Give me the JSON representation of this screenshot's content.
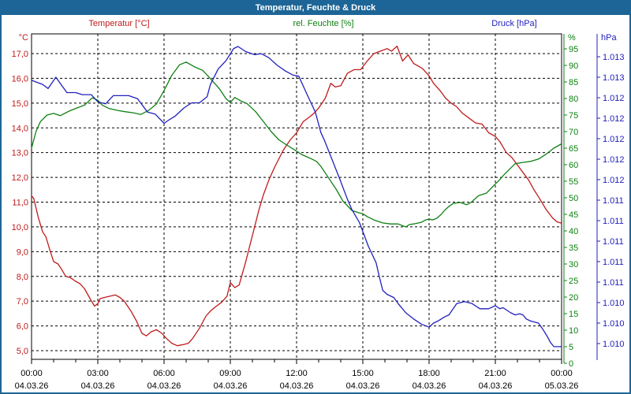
{
  "window": {
    "title": "Temperatur, Feuchte & Druck"
  },
  "legend": {
    "temperature": "Temperatur [°C]",
    "humidity": "rel. Feuchte [%]",
    "pressure": "Druck [hPa]"
  },
  "chart_data": {
    "type": "line",
    "title": "Temperatur, Feuchte & Druck",
    "grid": true,
    "legend_position": "top",
    "x_axis": {
      "label_times": [
        "00:00",
        "03:00",
        "06:00",
        "09:00",
        "12:00",
        "15:00",
        "18:00",
        "21:00",
        "00:00"
      ],
      "label_dates": [
        "04.03.26",
        "04.03.26",
        "04.03.26",
        "04.03.26",
        "04.03.26",
        "04.03.26",
        "04.03.26",
        "04.03.26",
        "05.03.26"
      ],
      "hours_range": [
        0,
        24
      ],
      "minor_tick_hours": 1,
      "major_tick_hours": 3
    },
    "y_axes": {
      "temperature": {
        "unit": "°C",
        "color": "#c01a1a",
        "tick_labels": [
          "17,0",
          "16,0",
          "15,0",
          "14,0",
          "13,0",
          "12,0",
          "11,0",
          "10,0",
          "9,0",
          "8,0",
          "7,0",
          "6,0",
          "5,0"
        ]
      },
      "humidity": {
        "unit": "%",
        "color": "#0f8012",
        "tick_labels": [
          "95",
          "90",
          "85",
          "80",
          "75",
          "70",
          "65",
          "60",
          "55",
          "50",
          "45",
          "40",
          "35",
          "30",
          "25",
          "20",
          "15",
          "10",
          "5",
          "0"
        ]
      },
      "pressure": {
        "unit": "hPa",
        "color": "#2121bd",
        "tick_labels": [
          "1.013",
          "1.013",
          "1.012",
          "1.012",
          "1.012",
          "1.012",
          "1.012",
          "1.011",
          "1.011",
          "1.011",
          "1.011",
          "1.011",
          "1.010",
          "1.010",
          "1.010"
        ]
      }
    },
    "series": [
      {
        "name": "Temperatur",
        "unit": "°C",
        "color": "#c01a1a",
        "points": [
          [
            0,
            11.25
          ],
          [
            0.1,
            11.15
          ],
          [
            0.3,
            10.4
          ],
          [
            0.5,
            9.8
          ],
          [
            0.65,
            9.6
          ],
          [
            0.85,
            9.0
          ],
          [
            1.0,
            8.6
          ],
          [
            1.2,
            8.5
          ],
          [
            1.35,
            8.3
          ],
          [
            1.55,
            8.0
          ],
          [
            1.75,
            7.95
          ],
          [
            2.0,
            7.8
          ],
          [
            2.2,
            7.7
          ],
          [
            2.4,
            7.5
          ],
          [
            2.65,
            7.1
          ],
          [
            2.85,
            6.8
          ],
          [
            3.0,
            6.9
          ],
          [
            3.1,
            7.1
          ],
          [
            3.3,
            7.15
          ],
          [
            3.55,
            7.2
          ],
          [
            3.8,
            7.25
          ],
          [
            4.0,
            7.15
          ],
          [
            4.2,
            7.0
          ],
          [
            4.5,
            6.6
          ],
          [
            4.75,
            6.2
          ],
          [
            5.0,
            5.7
          ],
          [
            5.2,
            5.6
          ],
          [
            5.4,
            5.75
          ],
          [
            5.65,
            5.85
          ],
          [
            5.9,
            5.7
          ],
          [
            6.1,
            5.5
          ],
          [
            6.35,
            5.3
          ],
          [
            6.6,
            5.2
          ],
          [
            6.9,
            5.25
          ],
          [
            7.1,
            5.3
          ],
          [
            7.3,
            5.5
          ],
          [
            7.6,
            5.9
          ],
          [
            7.9,
            6.4
          ],
          [
            8.1,
            6.6
          ],
          [
            8.3,
            6.75
          ],
          [
            8.6,
            6.95
          ],
          [
            8.85,
            7.2
          ],
          [
            9.0,
            7.75
          ],
          [
            9.2,
            7.55
          ],
          [
            9.4,
            7.65
          ],
          [
            9.7,
            8.6
          ],
          [
            9.9,
            9.3
          ],
          [
            10.1,
            10.0
          ],
          [
            10.3,
            10.7
          ],
          [
            10.5,
            11.3
          ],
          [
            10.75,
            11.9
          ],
          [
            11.0,
            12.4
          ],
          [
            11.2,
            12.75
          ],
          [
            11.4,
            13.1
          ],
          [
            11.7,
            13.5
          ],
          [
            12.0,
            13.8
          ],
          [
            12.3,
            14.25
          ],
          [
            12.6,
            14.45
          ],
          [
            12.8,
            14.6
          ],
          [
            13.0,
            14.8
          ],
          [
            13.3,
            15.2
          ],
          [
            13.55,
            15.8
          ],
          [
            13.75,
            15.65
          ],
          [
            14.0,
            15.7
          ],
          [
            14.3,
            16.2
          ],
          [
            14.6,
            16.35
          ],
          [
            14.9,
            16.35
          ],
          [
            15.2,
            16.7
          ],
          [
            15.5,
            17.0
          ],
          [
            15.8,
            17.1
          ],
          [
            16.1,
            17.2
          ],
          [
            16.3,
            17.1
          ],
          [
            16.55,
            17.3
          ],
          [
            16.8,
            16.7
          ],
          [
            17.05,
            16.95
          ],
          [
            17.3,
            16.6
          ],
          [
            17.5,
            16.5
          ],
          [
            17.7,
            16.4
          ],
          [
            18.0,
            16.1
          ],
          [
            18.2,
            15.8
          ],
          [
            18.5,
            15.5
          ],
          [
            18.75,
            15.2
          ],
          [
            19.0,
            15.0
          ],
          [
            19.25,
            14.85
          ],
          [
            19.5,
            14.6
          ],
          [
            19.8,
            14.4
          ],
          [
            20.1,
            14.2
          ],
          [
            20.4,
            14.15
          ],
          [
            20.7,
            13.8
          ],
          [
            21.0,
            13.65
          ],
          [
            21.2,
            13.45
          ],
          [
            21.5,
            13.0
          ],
          [
            21.75,
            12.8
          ],
          [
            22.0,
            12.5
          ],
          [
            22.25,
            12.2
          ],
          [
            22.5,
            11.9
          ],
          [
            22.75,
            11.5
          ],
          [
            23.0,
            11.15
          ],
          [
            23.3,
            10.7
          ],
          [
            23.6,
            10.35
          ],
          [
            23.8,
            10.2
          ],
          [
            24.0,
            10.15
          ]
        ]
      },
      {
        "name": "rel. Feuchte",
        "unit": "%",
        "color": "#0f8012",
        "points": [
          [
            0,
            65
          ],
          [
            0.2,
            70
          ],
          [
            0.4,
            73
          ],
          [
            0.7,
            75
          ],
          [
            1.0,
            75.5
          ],
          [
            1.3,
            74.8
          ],
          [
            1.7,
            76.2
          ],
          [
            2.0,
            77
          ],
          [
            2.4,
            78
          ],
          [
            2.75,
            80.2
          ],
          [
            3.0,
            79.5
          ],
          [
            3.2,
            78
          ],
          [
            3.5,
            77
          ],
          [
            3.9,
            76.4
          ],
          [
            4.25,
            76
          ],
          [
            4.6,
            75.7
          ],
          [
            4.95,
            75.2
          ],
          [
            5.3,
            76.4
          ],
          [
            5.65,
            78.3
          ],
          [
            6.0,
            82.4
          ],
          [
            6.35,
            87
          ],
          [
            6.7,
            90.2
          ],
          [
            7.0,
            91
          ],
          [
            7.4,
            89.5
          ],
          [
            7.75,
            88.5
          ],
          [
            8.1,
            86
          ],
          [
            8.5,
            83
          ],
          [
            8.8,
            80
          ],
          [
            9.0,
            78.8
          ],
          [
            9.2,
            80.3
          ],
          [
            9.5,
            79.2
          ],
          [
            9.75,
            78.5
          ],
          [
            10.15,
            76
          ],
          [
            10.5,
            73
          ],
          [
            10.85,
            70
          ],
          [
            11.2,
            67.5
          ],
          [
            11.5,
            66.2
          ],
          [
            11.9,
            64.5
          ],
          [
            12.25,
            63
          ],
          [
            12.6,
            62
          ],
          [
            12.9,
            61
          ],
          [
            13.1,
            59.5
          ],
          [
            13.4,
            56.5
          ],
          [
            13.8,
            52.5
          ],
          [
            14.1,
            49
          ],
          [
            14.5,
            46.2
          ],
          [
            14.8,
            45.5
          ],
          [
            15.0,
            45.2
          ],
          [
            15.2,
            44.3
          ],
          [
            15.5,
            43.3
          ],
          [
            15.9,
            42.4
          ],
          [
            16.25,
            42.1
          ],
          [
            16.6,
            42.1
          ],
          [
            16.95,
            41.2
          ],
          [
            17.1,
            41.9
          ],
          [
            17.3,
            42.1
          ],
          [
            17.65,
            42.6
          ],
          [
            17.85,
            43.3
          ],
          [
            18.0,
            43.6
          ],
          [
            18.15,
            43.3
          ],
          [
            18.35,
            43.8
          ],
          [
            18.55,
            45.0
          ],
          [
            18.7,
            46.2
          ],
          [
            18.9,
            47.4
          ],
          [
            19.1,
            48.3
          ],
          [
            19.4,
            48.6
          ],
          [
            19.7,
            47.9
          ],
          [
            19.9,
            48.6
          ],
          [
            20.25,
            50.7
          ],
          [
            20.6,
            51.4
          ],
          [
            20.9,
            53.5
          ],
          [
            21.2,
            55.5
          ],
          [
            21.4,
            57
          ],
          [
            21.7,
            59
          ],
          [
            21.9,
            60.3
          ],
          [
            22.25,
            60.7
          ],
          [
            22.6,
            61
          ],
          [
            22.95,
            61.7
          ],
          [
            23.3,
            63.2
          ],
          [
            23.65,
            65
          ],
          [
            24.0,
            66.3
          ]
        ]
      },
      {
        "name": "Druck",
        "unit": "hPa",
        "color": "#2121bd",
        "points": [
          [
            0,
            1012.97
          ],
          [
            0.5,
            1012.93
          ],
          [
            0.75,
            1012.89
          ],
          [
            1.1,
            1013.0
          ],
          [
            1.6,
            1012.85
          ],
          [
            2.0,
            1012.85
          ],
          [
            2.3,
            1012.83
          ],
          [
            2.7,
            1012.83
          ],
          [
            3.0,
            1012.76
          ],
          [
            3.35,
            1012.74
          ],
          [
            3.7,
            1012.82
          ],
          [
            4.4,
            1012.82
          ],
          [
            4.8,
            1012.79
          ],
          [
            5.25,
            1012.66
          ],
          [
            5.6,
            1012.64
          ],
          [
            6.0,
            1012.55
          ],
          [
            6.2,
            1012.58
          ],
          [
            6.5,
            1012.62
          ],
          [
            6.9,
            1012.7
          ],
          [
            7.25,
            1012.75
          ],
          [
            7.6,
            1012.75
          ],
          [
            7.95,
            1012.81
          ],
          [
            8.1,
            1012.93
          ],
          [
            8.45,
            1013.08
          ],
          [
            8.8,
            1013.16
          ],
          [
            9.15,
            1013.28
          ],
          [
            9.35,
            1013.3
          ],
          [
            9.7,
            1013.25
          ],
          [
            10.1,
            1013.22
          ],
          [
            10.4,
            1013.23
          ],
          [
            10.75,
            1013.19
          ],
          [
            11.1,
            1013.12
          ],
          [
            11.5,
            1013.06
          ],
          [
            11.85,
            1013.02
          ],
          [
            12.1,
            1013.01
          ],
          [
            12.5,
            1012.82
          ],
          [
            12.85,
            1012.66
          ],
          [
            13.1,
            1012.46
          ],
          [
            13.25,
            1012.39
          ],
          [
            13.6,
            1012.2
          ],
          [
            13.95,
            1012.01
          ],
          [
            14.3,
            1011.81
          ],
          [
            14.5,
            1011.71
          ],
          [
            14.85,
            1011.58
          ],
          [
            15.25,
            1011.35
          ],
          [
            15.6,
            1011.19
          ],
          [
            15.75,
            1011.05
          ],
          [
            15.9,
            1010.92
          ],
          [
            16.1,
            1010.88
          ],
          [
            16.4,
            1010.85
          ],
          [
            16.6,
            1010.79
          ],
          [
            16.95,
            1010.7
          ],
          [
            17.3,
            1010.64
          ],
          [
            17.65,
            1010.59
          ],
          [
            18.0,
            1010.56
          ],
          [
            18.2,
            1010.6
          ],
          [
            18.4,
            1010.62
          ],
          [
            18.7,
            1010.66
          ],
          [
            18.9,
            1010.68
          ],
          [
            19.25,
            1010.79
          ],
          [
            19.6,
            1010.81
          ],
          [
            19.95,
            1010.79
          ],
          [
            20.3,
            1010.74
          ],
          [
            20.7,
            1010.74
          ],
          [
            21.0,
            1010.77
          ],
          [
            21.2,
            1010.74
          ],
          [
            21.35,
            1010.75
          ],
          [
            21.7,
            1010.7
          ],
          [
            21.9,
            1010.68
          ],
          [
            22.1,
            1010.69
          ],
          [
            22.25,
            1010.68
          ],
          [
            22.4,
            1010.64
          ],
          [
            22.6,
            1010.62
          ],
          [
            22.95,
            1010.6
          ],
          [
            23.15,
            1010.54
          ],
          [
            23.35,
            1010.47
          ],
          [
            23.5,
            1010.41
          ],
          [
            23.65,
            1010.37
          ],
          [
            24.0,
            1010.37
          ]
        ]
      }
    ]
  }
}
